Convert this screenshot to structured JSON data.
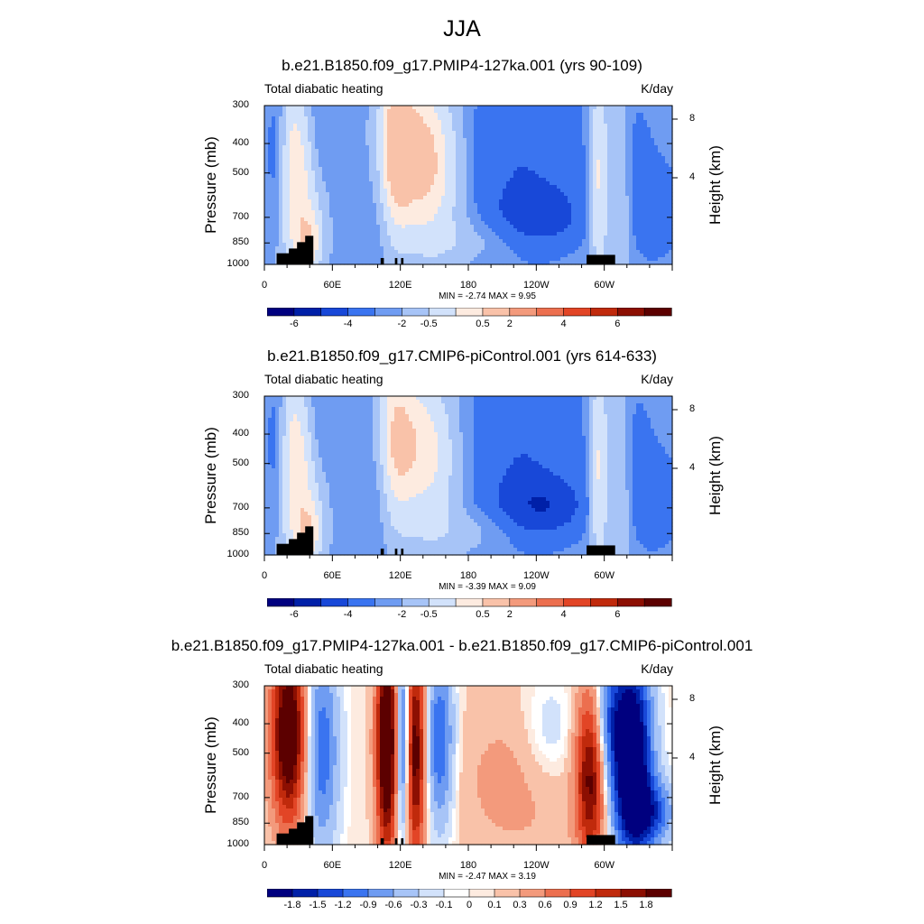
{
  "title": "JJA",
  "palette": {
    "main": [
      "#00007f",
      "#0020a8",
      "#1848d8",
      "#3a74f0",
      "#6f9cf2",
      "#a7c4f7",
      "#d2e2fb",
      "#fdebe0",
      "#f9c2a9",
      "#f39a7c",
      "#ec6f4f",
      "#e24526",
      "#c02a0c",
      "#8c0f02",
      "#5c0000"
    ],
    "diff": [
      "#00007f",
      "#0020a8",
      "#1848d8",
      "#3a74f0",
      "#6f9cf2",
      "#a7c4f7",
      "#d2e2fb",
      "#ffffff",
      "#fdebe0",
      "#f9c2a9",
      "#f39a7c",
      "#ec6f4f",
      "#e24526",
      "#c02a0c",
      "#8c0f02",
      "#5c0000"
    ]
  },
  "panels": [
    {
      "title": "b.e21.B1850.f09_g17.PMIP4-127ka.001 (yrs 90-109)",
      "left_label": "Total diabatic heating",
      "right_label": "K/day",
      "y_axis_label": "Pressure (mb)",
      "y2_axis_label": "Height (km)",
      "pressure_ticks": [
        "300",
        "400",
        "500",
        "700",
        "850",
        "1000"
      ],
      "height_ticks": [
        "8",
        "4"
      ],
      "x_ticks": [
        "0",
        "60E",
        "120E",
        "180",
        "120W",
        "60W"
      ],
      "stats": "MIN =  -2.74   MAX =   9.95",
      "colorbar_labels": [
        "-6",
        "-4",
        "-2",
        "-0.5",
        "0.5",
        "2",
        "4",
        "6"
      ],
      "scale": "main"
    },
    {
      "title": "b.e21.B1850.f09_g17.CMIP6-piControl.001 (yrs 614-633)",
      "left_label": "Total diabatic heating",
      "right_label": "K/day",
      "y_axis_label": "Pressure (mb)",
      "y2_axis_label": "Height (km)",
      "pressure_ticks": [
        "300",
        "400",
        "500",
        "700",
        "850",
        "1000"
      ],
      "height_ticks": [
        "8",
        "4"
      ],
      "x_ticks": [
        "0",
        "60E",
        "120E",
        "180",
        "120W",
        "60W"
      ],
      "stats": "MIN =  -3.39   MAX =   9.09",
      "colorbar_labels": [
        "-6",
        "-4",
        "-2",
        "-0.5",
        "0.5",
        "2",
        "4",
        "6"
      ],
      "scale": "main"
    },
    {
      "title": "b.e21.B1850.f09_g17.PMIP4-127ka.001 - b.e21.B1850.f09_g17.CMIP6-piControl.001",
      "left_label": "Total diabatic heating",
      "right_label": "K/day",
      "y_axis_label": "Pressure (mb)",
      "y2_axis_label": "Height (km)",
      "pressure_ticks": [
        "300",
        "400",
        "500",
        "700",
        "850",
        "1000"
      ],
      "height_ticks": [
        "8",
        "4"
      ],
      "x_ticks": [
        "0",
        "60E",
        "120E",
        "180",
        "120W",
        "60W"
      ],
      "stats": "MIN =  -2.47   MAX =   3.19",
      "colorbar_labels": [
        "-1.8",
        "-1.5",
        "-1.2",
        "-0.9",
        "-0.6",
        "-0.3",
        "-0.1",
        "0",
        "0.1",
        "0.3",
        "0.6",
        "0.9",
        "1.2",
        "1.5",
        "1.8"
      ],
      "scale": "diff"
    }
  ],
  "chart_data": {
    "type": "heatmap",
    "title": "JJA",
    "xlabel": "",
    "ylabel": "Pressure (mb)",
    "y2label": "Height (km)",
    "units": "K/day",
    "x_ticks": [
      "0",
      "60E",
      "120E",
      "180",
      "120W",
      "60W"
    ],
    "y_ticks": [
      300,
      400,
      500,
      700,
      850,
      1000
    ],
    "y2_ticks": [
      8,
      4
    ],
    "colorbar_main": [
      -6,
      -4,
      -2,
      -0.5,
      0.5,
      2,
      4,
      6
    ],
    "colorbar_diff": [
      -1.8,
      -1.5,
      -1.2,
      -0.9,
      -0.6,
      -0.3,
      -0.1,
      0,
      0.1,
      0.3,
      0.6,
      0.9,
      1.2,
      1.5,
      1.8
    ],
    "panels": [
      {
        "title": "b.e21.B1850.f09_g17.PMIP4-127ka.001 (yrs 90-109)",
        "min": -2.74,
        "max": 9.95
      },
      {
        "title": "b.e21.B1850.f09_g17.CMIP6-piControl.001 (yrs 614-633)",
        "min": -3.39,
        "max": 9.09
      },
      {
        "title": "b.e21.B1850.f09_g17.PMIP4-127ka.001 - b.e21.B1850.f09_g17.CMIP6-piControl.001",
        "min": -2.47,
        "max": 3.19
      }
    ]
  }
}
